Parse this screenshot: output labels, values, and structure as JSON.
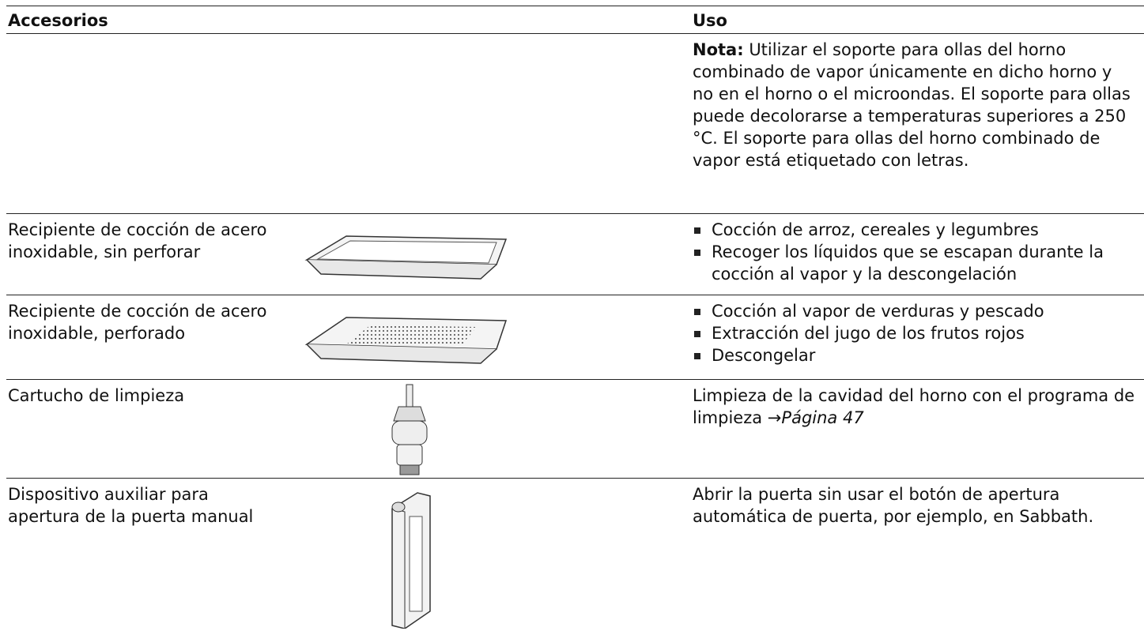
{
  "table": {
    "header": [
      "Accesorios",
      "Uso"
    ],
    "note": {
      "label": "Nota:",
      "text": "Utilizar el soporte para ollas del horno combinado de vapor únicamente en dicho horno y no en el horno o el microondas. El soporte para ollas puede decolorarse a temperaturas superiores a 250 °C. El soporte para ollas del horno combinado de vapor está etiquetado con letras."
    },
    "rows": [
      {
        "name": "Recipiente de cocción de acero inoxidable, sin perforar",
        "uses": [
          "Cocción de arroz, cereales y legumbres",
          "Recoger los líquidos que se escapan durante la cocción al vapor y la descongelación"
        ]
      },
      {
        "name": "Recipiente de cocción de acero inoxidable, perforado",
        "uses": [
          "Cocción al vapor de verduras y pescado",
          "Extracción del jugo de los frutos rojos",
          "Descongelar"
        ]
      },
      {
        "name": "Cartucho de limpieza",
        "use": "Limpieza de la cavidad del horno con el programa de limpieza",
        "arrow": "→",
        "link": "Página 47"
      },
      {
        "name": "Dispositivo auxiliar para apertura de la puerta manual",
        "use": "Abrir la puerta sin usar el botón de apertura automática de puerta, por ejemplo, en Sabbath."
      }
    ]
  }
}
